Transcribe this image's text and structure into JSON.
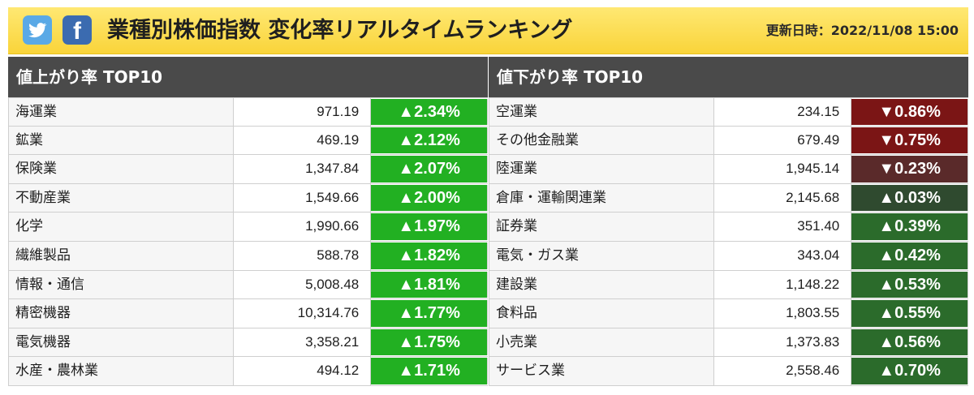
{
  "header": {
    "twitter_icon": "twitter-bird-icon",
    "facebook_icon": "facebook-f-icon",
    "title": "業種別株価指数 変化率リアルタイムランキング",
    "updated": "更新日時：2022/11/08 15:00"
  },
  "colors": {
    "header_bg": "#f9d43a",
    "panel_head_bg": "#4a4a4a",
    "up_strong": "#22b022",
    "up_dark": "#2b6b2b",
    "down_strong": "#7b1515",
    "down_weak": "#5a2a2a"
  },
  "gainers": {
    "heading": "値上がり率 TOP10",
    "rows": [
      {
        "name": "海運業",
        "value": "971.19",
        "change": "▲2.34%",
        "color": "#22b022"
      },
      {
        "name": "鉱業",
        "value": "469.19",
        "change": "▲2.12%",
        "color": "#22b022"
      },
      {
        "name": "保険業",
        "value": "1,347.84",
        "change": "▲2.07%",
        "color": "#22b022"
      },
      {
        "name": "不動産業",
        "value": "1,549.66",
        "change": "▲2.00%",
        "color": "#22b022"
      },
      {
        "name": "化学",
        "value": "1,990.66",
        "change": "▲1.97%",
        "color": "#22b022"
      },
      {
        "name": "繊維製品",
        "value": "588.78",
        "change": "▲1.82%",
        "color": "#22b022"
      },
      {
        "name": "情報・通信",
        "value": "5,008.48",
        "change": "▲1.81%",
        "color": "#22b022"
      },
      {
        "name": "精密機器",
        "value": "10,314.76",
        "change": "▲1.77%",
        "color": "#22b022"
      },
      {
        "name": "電気機器",
        "value": "3,358.21",
        "change": "▲1.75%",
        "color": "#22b022"
      },
      {
        "name": "水産・農林業",
        "value": "494.12",
        "change": "▲1.71%",
        "color": "#22b022"
      }
    ]
  },
  "losers": {
    "heading": "値下がり率 TOP10",
    "rows": [
      {
        "name": "空運業",
        "value": "234.15",
        "change": "▼0.86%",
        "color": "#7b1515"
      },
      {
        "name": "その他金融業",
        "value": "679.49",
        "change": "▼0.75%",
        "color": "#7b1515"
      },
      {
        "name": "陸運業",
        "value": "1,945.14",
        "change": "▼0.23%",
        "color": "#5a2a2a"
      },
      {
        "name": "倉庫・運輸関連業",
        "value": "2,145.68",
        "change": "▲0.03%",
        "color": "#2f4a2f"
      },
      {
        "name": "証券業",
        "value": "351.40",
        "change": "▲0.39%",
        "color": "#2b6b2b"
      },
      {
        "name": "電気・ガス業",
        "value": "343.04",
        "change": "▲0.42%",
        "color": "#2b6b2b"
      },
      {
        "name": "建設業",
        "value": "1,148.22",
        "change": "▲0.53%",
        "color": "#2b6b2b"
      },
      {
        "name": "食料品",
        "value": "1,803.55",
        "change": "▲0.55%",
        "color": "#2b6b2b"
      },
      {
        "name": "小売業",
        "value": "1,373.83",
        "change": "▲0.56%",
        "color": "#2b6b2b"
      },
      {
        "name": "サービス業",
        "value": "2,558.46",
        "change": "▲0.70%",
        "color": "#2b6b2b"
      }
    ]
  }
}
